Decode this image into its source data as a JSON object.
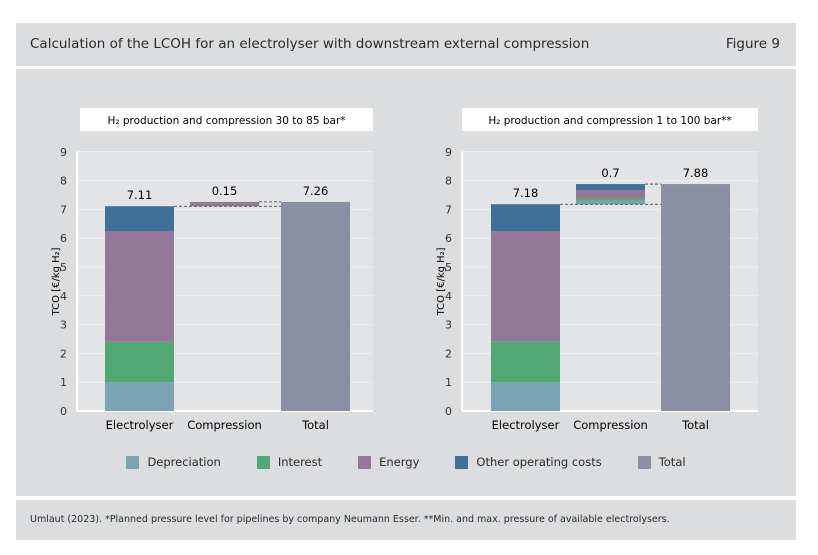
{
  "title": "Calculation of the LCOH for an electrolyser with downstream external compression",
  "figure_label": "Figure 9",
  "footnote": "Umlaut (2023). *Planned pressure level for pipelines by company Neumann Esser. **Min. and max. pressure of available electrolysers.",
  "colors": {
    "Depreciation": "#7aa3b3",
    "Interest": "#52a873",
    "Energy": "#937799",
    "Other operating costs": "#3f7099",
    "Total": "#8a8fa3"
  },
  "legend": [
    "Depreciation",
    "Interest",
    "Energy",
    "Other operating costs",
    "Total"
  ],
  "chart_data": [
    {
      "type": "bar",
      "stacked": true,
      "waterfall": true,
      "title": "H₂ production and compression 30 to 85 bar*",
      "ylabel": "TCO [€/kg H₂]",
      "ylim": [
        0,
        9
      ],
      "yticks": [
        0,
        1,
        2,
        3,
        4,
        5,
        6,
        7,
        8,
        9
      ],
      "grid": true,
      "categories": [
        "Electrolyser",
        "Compression",
        "Total"
      ],
      "series": [
        {
          "name": "Depreciation",
          "values": [
            1.0,
            0,
            0
          ]
        },
        {
          "name": "Interest",
          "values": [
            1.4,
            0,
            0
          ]
        },
        {
          "name": "Energy",
          "values": [
            3.85,
            0.15,
            0
          ]
        },
        {
          "name": "Other operating costs",
          "values": [
            0.86,
            0,
            0
          ]
        },
        {
          "name": "Total",
          "values": [
            0,
            0,
            7.26
          ]
        }
      ],
      "data_labels": [
        "7.11",
        "0.15",
        "7.26"
      ]
    },
    {
      "type": "bar",
      "stacked": true,
      "waterfall": true,
      "title": "H₂ production and compression 1 to 100 bar**",
      "ylabel": "TCO [€/kg H₂]",
      "ylim": [
        0,
        9
      ],
      "yticks": [
        0,
        1,
        2,
        3,
        4,
        5,
        6,
        7,
        8,
        9
      ],
      "grid": true,
      "categories": [
        "Electrolyser",
        "Compression",
        "Total"
      ],
      "series": [
        {
          "name": "Depreciation",
          "values": [
            1.0,
            0.12,
            0
          ]
        },
        {
          "name": "Interest",
          "values": [
            1.42,
            0.08,
            0
          ]
        },
        {
          "name": "Energy",
          "values": [
            3.83,
            0.28,
            0
          ]
        },
        {
          "name": "Other operating costs",
          "values": [
            0.93,
            0.22,
            0
          ]
        },
        {
          "name": "Total",
          "values": [
            0,
            0,
            7.88
          ]
        }
      ],
      "data_labels": [
        "7.18",
        "0.7",
        "7.88"
      ]
    }
  ]
}
